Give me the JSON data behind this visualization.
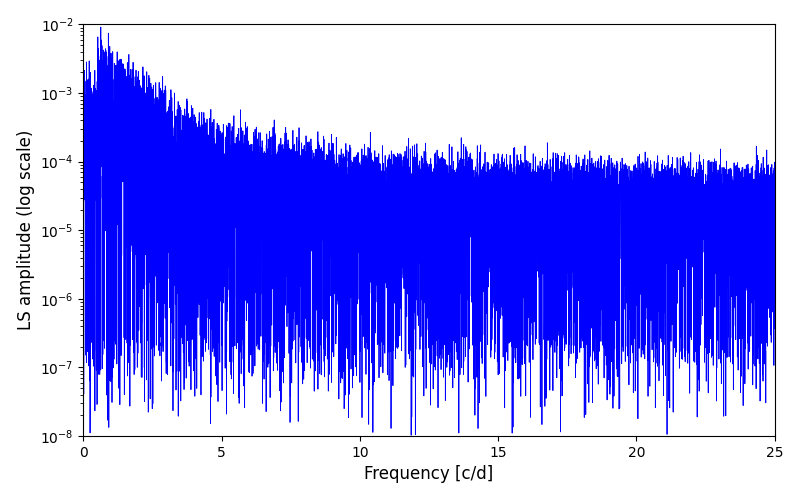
{
  "title": "",
  "xlabel": "Frequency [c/d]",
  "ylabel": "LS amplitude (log scale)",
  "xlim": [
    0,
    25
  ],
  "ylim": [
    1e-08,
    0.01
  ],
  "line_color": "#0000ff",
  "line_width": 0.6,
  "figsize": [
    8.0,
    5.0
  ],
  "dpi": 100,
  "freq_min": 0.005,
  "freq_max": 25.0,
  "n_points": 8000,
  "seed": 12345,
  "background_color": "#ffffff"
}
